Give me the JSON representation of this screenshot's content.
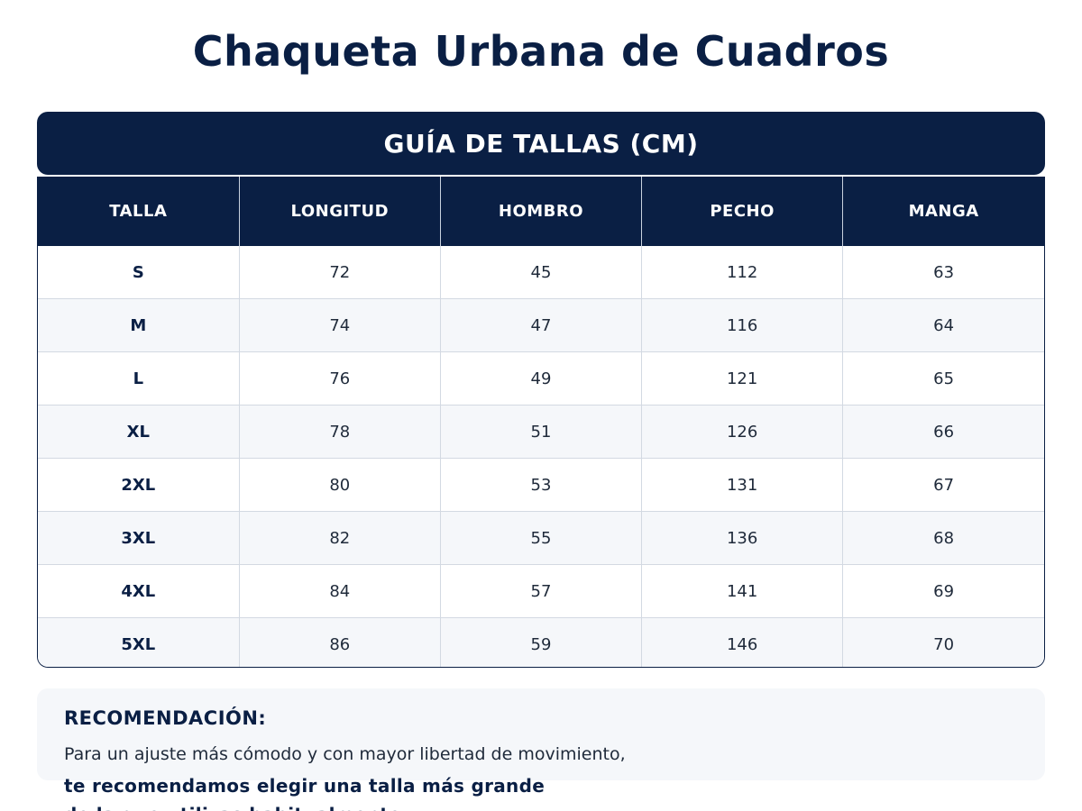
{
  "title": "Chaqueta Urbana de Cuadros",
  "guide_title": "GUÍA DE TALLAS (CM)",
  "table": {
    "headers": [
      "TALLA",
      "LONGITUD",
      "HOMBRO",
      "PECHO",
      "MANGA"
    ],
    "rows": [
      [
        "S",
        "72",
        "45",
        "112",
        "63"
      ],
      [
        "M",
        "74",
        "47",
        "116",
        "64"
      ],
      [
        "L",
        "76",
        "49",
        "121",
        "65"
      ],
      [
        "XL",
        "78",
        "51",
        "126",
        "66"
      ],
      [
        "2XL",
        "80",
        "53",
        "131",
        "67"
      ],
      [
        "3XL",
        "82",
        "55",
        "136",
        "68"
      ],
      [
        "4XL",
        "84",
        "57",
        "141",
        "69"
      ],
      [
        "5XL",
        "86",
        "59",
        "146",
        "70"
      ]
    ]
  },
  "recommendation": {
    "title": "RECOMENDACIÓN:",
    "line1": "Para un ajuste más cómodo y con mayor libertad de movimiento,",
    "line2": "te recomendamos elegir una talla más grande",
    "line3": "de la que utilizas habitualmente."
  },
  "colors": {
    "navy": "#0a1f44",
    "row_alt": "#f5f7fa"
  }
}
